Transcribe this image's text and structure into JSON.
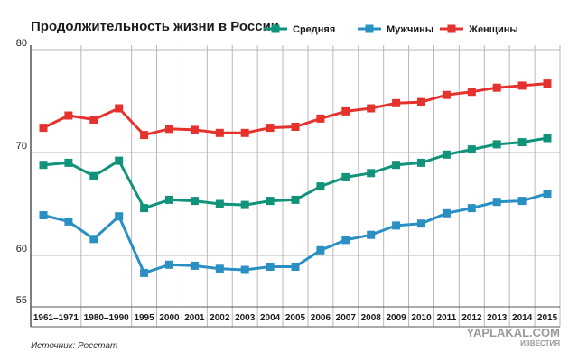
{
  "chart_data": {
    "type": "line",
    "title": "Продолжительность жизни в России",
    "categories": [
      "1961-1971",
      "1980-1990",
      "1995",
      "2000",
      "2001",
      "2002",
      "2003",
      "2004",
      "2005",
      "2006",
      "2007",
      "2008",
      "2009",
      "2010",
      "2011",
      "2012",
      "2013",
      "2014",
      "2015"
    ],
    "x_tick_labels": [
      "1961–1971",
      "1980–1990",
      "1995",
      "2000",
      "2001",
      "2002",
      "2003",
      "2004",
      "2005",
      "2006",
      "2007",
      "2008",
      "2009",
      "2010",
      "2011",
      "2012",
      "2013",
      "2014",
      "2015"
    ],
    "x": [
      1961,
      1971,
      1980,
      1990,
      1995,
      2000,
      2001,
      2002,
      2003,
      2004,
      2005,
      2006,
      2007,
      2008,
      2009,
      2010,
      2011,
      2012,
      2013,
      2014,
      2015
    ],
    "series": [
      {
        "name": "Средняя",
        "color": "#10937a",
        "values": [
          68.8,
          69.0,
          67.7,
          69.2,
          64.6,
          65.4,
          65.3,
          65.0,
          64.9,
          65.3,
          65.4,
          66.7,
          67.6,
          68.0,
          68.8,
          69.0,
          69.8,
          70.3,
          70.8,
          71.0,
          71.4
        ]
      },
      {
        "name": "Мужчины",
        "color": "#2a8fc3",
        "values": [
          63.9,
          63.3,
          61.6,
          63.8,
          58.3,
          59.1,
          59.0,
          58.7,
          58.6,
          58.9,
          58.9,
          60.5,
          61.5,
          62.0,
          62.9,
          63.1,
          64.1,
          64.6,
          65.2,
          65.3,
          66.0
        ]
      },
      {
        "name": "Женщины",
        "color": "#e6322d",
        "values": [
          72.4,
          73.6,
          73.2,
          74.3,
          71.7,
          72.3,
          72.2,
          71.9,
          71.9,
          72.4,
          72.5,
          73.3,
          74.0,
          74.3,
          74.8,
          74.9,
          75.6,
          75.9,
          76.3,
          76.5,
          76.7
        ]
      }
    ],
    "y_ticks": [
      55,
      60,
      70,
      80
    ],
    "ylim": [
      55,
      80
    ],
    "grid": true,
    "legend_position": "top-right"
  },
  "source": "Источник: Росстат",
  "watermark_main": "YAPLAKAL.COM",
  "watermark_sub": "ИЗВЕСТИЯ",
  "colors": {
    "grid": "#b8b8b8",
    "axis": "#555555",
    "background": "#ffffff"
  }
}
